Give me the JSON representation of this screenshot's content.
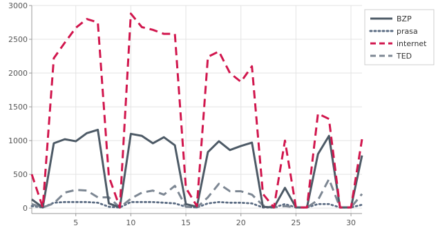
{
  "chart_data": {
    "type": "line",
    "x": [
      1,
      2,
      3,
      4,
      5,
      6,
      7,
      8,
      9,
      10,
      11,
      12,
      13,
      14,
      15,
      16,
      17,
      18,
      19,
      20,
      21,
      22,
      23,
      24,
      25,
      26,
      27,
      28,
      29,
      30,
      31
    ],
    "xlim": [
      1,
      31
    ],
    "ylim": [
      -80,
      3000
    ],
    "xticks": [
      5,
      10,
      15,
      20,
      25,
      30
    ],
    "yticks": [
      0,
      500,
      1000,
      1500,
      2000,
      2500,
      3000
    ],
    "grid": true,
    "legend_position": "top-right",
    "series": [
      {
        "name": "BZP",
        "color": "#4d5a66",
        "dash": "solid",
        "values": [
          130,
          10,
          960,
          1020,
          990,
          1110,
          1160,
          70,
          10,
          1100,
          1070,
          960,
          1050,
          930,
          60,
          20,
          830,
          990,
          860,
          920,
          970,
          20,
          10,
          300,
          10,
          10,
          800,
          1070,
          10,
          10,
          780
        ]
      },
      {
        "name": "prasa",
        "color": "#5a6b82",
        "dash": "dotted",
        "values": [
          30,
          10,
          80,
          90,
          90,
          90,
          80,
          20,
          10,
          90,
          90,
          90,
          80,
          70,
          20,
          10,
          70,
          90,
          80,
          80,
          70,
          10,
          10,
          60,
          10,
          10,
          60,
          60,
          10,
          10,
          50
        ]
      },
      {
        "name": "internet",
        "color": "#d1164d",
        "dash": "dashed",
        "values": [
          500,
          10,
          2220,
          2450,
          2670,
          2800,
          2750,
          470,
          10,
          2880,
          2680,
          2640,
          2580,
          2580,
          300,
          30,
          2240,
          2320,
          2000,
          1870,
          2100,
          210,
          10,
          1000,
          10,
          10,
          1400,
          1320,
          10,
          10,
          1020
        ]
      },
      {
        "name": "TED",
        "color": "#7d8793",
        "dash": "dashed",
        "values": [
          60,
          10,
          70,
          230,
          270,
          260,
          160,
          160,
          10,
          140,
          230,
          260,
          200,
          330,
          20,
          10,
          160,
          360,
          250,
          250,
          200,
          40,
          10,
          30,
          10,
          10,
          120,
          430,
          10,
          10,
          210
        ]
      }
    ]
  }
}
